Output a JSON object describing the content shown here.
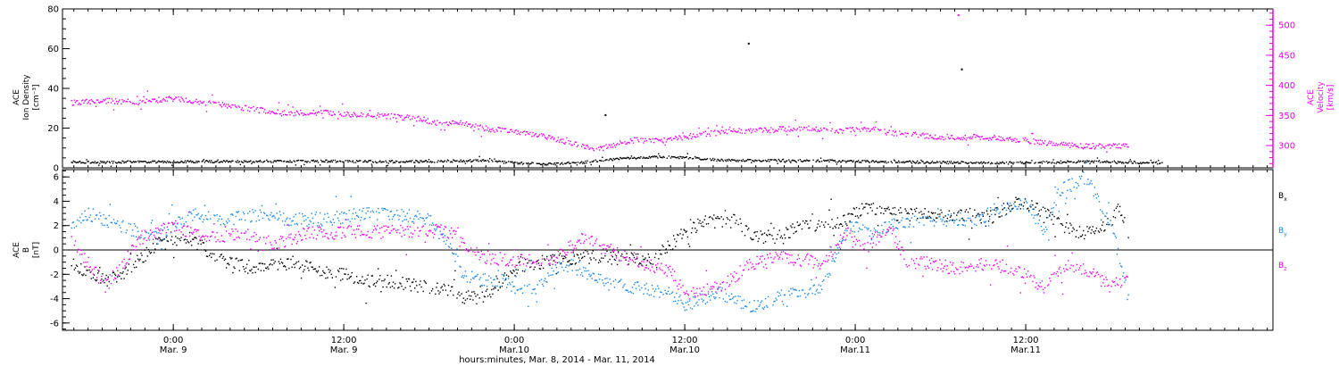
{
  "chart_data": [
    {
      "type": "scatter",
      "title": "",
      "ylabel": "ACE Ion Density [cm⁻³]",
      "ylabel_lines": [
        "ACE",
        "Ion Density",
        "[cm⁻³]"
      ],
      "ylim": [
        0,
        80
      ],
      "yticks": [
        0,
        20,
        40,
        60,
        80
      ],
      "series": [
        {
          "color": "#000000",
          "points": [
            [
              -0.6,
              3
            ],
            [
              -0.3,
              3.2
            ],
            [
              0,
              3.4
            ],
            [
              0.3,
              3.5
            ],
            [
              0.6,
              3.6
            ],
            [
              0.9,
              3.6
            ],
            [
              1.2,
              3.4
            ],
            [
              1.5,
              3.5
            ],
            [
              1.8,
              4
            ],
            [
              2.0,
              2.8
            ],
            [
              2.2,
              2.2
            ],
            [
              2.4,
              3
            ],
            [
              2.6,
              4.8
            ],
            [
              2.8,
              5.8
            ],
            [
              3.0,
              5.5
            ],
            [
              3.2,
              4.2
            ],
            [
              3.4,
              4
            ],
            [
              3.7,
              4
            ],
            [
              4.0,
              3.5
            ],
            [
              4.3,
              3.2
            ],
            [
              4.6,
              3
            ],
            [
              4.9,
              2.8
            ],
            [
              5.1,
              3
            ],
            [
              5.4,
              3.5
            ],
            [
              5.6,
              3
            ],
            [
              5.8,
              2.8
            ]
          ],
          "outliers": [
            [
              3.37,
              63
            ],
            [
              4.62,
              50
            ],
            [
              2.53,
              27
            ]
          ]
        }
      ],
      "right_axis": {
        "ylabel": "ACE Velocity [km/s]",
        "ylabel_lines": [
          "ACE",
          "Velocity",
          "[km/s]"
        ],
        "ylim": [
          263,
          527
        ],
        "yticks": [
          300,
          350,
          400,
          450,
          500
        ],
        "color": "#ee00ee",
        "series": [
          {
            "color": "#ee00ee",
            "points": [
              [
                -0.6,
                372
              ],
              [
                -0.4,
                375
              ],
              [
                -0.2,
                373
              ],
              [
                0,
                379
              ],
              [
                0.15,
                373
              ],
              [
                0.3,
                368
              ],
              [
                0.5,
                360
              ],
              [
                0.7,
                355
              ],
              [
                0.9,
                356
              ],
              [
                1.1,
                352
              ],
              [
                1.3,
                349
              ],
              [
                1.45,
                345
              ],
              [
                1.55,
                338
              ],
              [
                1.7,
                338
              ],
              [
                1.85,
                328
              ],
              [
                2.0,
                325
              ],
              [
                2.2,
                315
              ],
              [
                2.4,
                300
              ],
              [
                2.5,
                295
              ],
              [
                2.55,
                300
              ],
              [
                2.7,
                310
              ],
              [
                2.9,
                310
              ],
              [
                3.1,
                320
              ],
              [
                3.3,
                325
              ],
              [
                3.5,
                327
              ],
              [
                3.7,
                330
              ],
              [
                3.9,
                326
              ],
              [
                4.1,
                328
              ],
              [
                4.2,
                322
              ],
              [
                4.3,
                320
              ],
              [
                4.5,
                315
              ],
              [
                4.7,
                315
              ],
              [
                4.9,
                312
              ],
              [
                5.1,
                306
              ],
              [
                5.3,
                300
              ],
              [
                5.5,
                300
              ],
              [
                5.6,
                301
              ]
            ],
            "outliers": [
              [
                4.6,
                518
              ]
            ]
          }
        ]
      }
    },
    {
      "type": "scatter",
      "title": "",
      "ylabel": "ACE B [nT]",
      "ylabel_lines": [
        "ACE",
        "B",
        "[nT]"
      ],
      "ylim": [
        -6.6,
        6.6
      ],
      "yticks": [
        -6,
        -4,
        -2,
        0,
        2,
        4,
        6
      ],
      "zero_line": true,
      "legend_position": "right",
      "series": [
        {
          "name": "Bx",
          "color": "#000000",
          "points": [
            [
              -0.6,
              -1
            ],
            [
              -0.5,
              -1.8
            ],
            [
              -0.4,
              -2.5
            ],
            [
              -0.3,
              -2
            ],
            [
              -0.1,
              0.5
            ],
            [
              0.1,
              1
            ],
            [
              0.3,
              -1
            ],
            [
              0.5,
              -1.5
            ],
            [
              0.7,
              -1
            ],
            [
              0.9,
              -1.8
            ],
            [
              1.0,
              -2
            ],
            [
              1.1,
              -2.5
            ],
            [
              1.3,
              -2.6
            ],
            [
              1.45,
              -3
            ],
            [
              1.6,
              -3.3
            ],
            [
              1.7,
              -3.8
            ],
            [
              1.8,
              -4
            ],
            [
              2.0,
              -1.5
            ],
            [
              2.2,
              -0.8
            ],
            [
              2.4,
              -0.5
            ],
            [
              2.6,
              -0.6
            ],
            [
              2.8,
              -0.8
            ],
            [
              3.0,
              1.5
            ],
            [
              3.1,
              2.3
            ],
            [
              3.3,
              2.5
            ],
            [
              3.4,
              1
            ],
            [
              3.6,
              1.5
            ],
            [
              3.7,
              2
            ],
            [
              3.8,
              2
            ],
            [
              3.95,
              2.5
            ],
            [
              4.05,
              3.5
            ],
            [
              4.2,
              3
            ],
            [
              4.4,
              3
            ],
            [
              4.6,
              2.8
            ],
            [
              4.8,
              2.8
            ],
            [
              4.95,
              4
            ],
            [
              5.1,
              3.2
            ],
            [
              5.2,
              2
            ],
            [
              5.3,
              1.5
            ],
            [
              5.45,
              2
            ],
            [
              5.55,
              3.5
            ],
            [
              5.6,
              1
            ]
          ]
        },
        {
          "name": "By",
          "color": "#1888e8",
          "points": [
            [
              -0.6,
              2
            ],
            [
              -0.5,
              3
            ],
            [
              -0.3,
              2
            ],
            [
              -0.1,
              1
            ],
            [
              0.1,
              3
            ],
            [
              0.3,
              2.5
            ],
            [
              0.5,
              3
            ],
            [
              0.7,
              2.5
            ],
            [
              0.9,
              2.6
            ],
            [
              1.1,
              3
            ],
            [
              1.3,
              3
            ],
            [
              1.5,
              2.6
            ],
            [
              1.65,
              -0.5
            ],
            [
              1.7,
              -2
            ],
            [
              1.85,
              -2.5
            ],
            [
              1.95,
              -2.5
            ],
            [
              2.0,
              -3
            ],
            [
              2.1,
              -3.3
            ],
            [
              2.3,
              -1
            ],
            [
              2.5,
              -2.5
            ],
            [
              2.7,
              -3
            ],
            [
              2.9,
              -3.5
            ],
            [
              3.0,
              -4.5
            ],
            [
              3.2,
              -3.5
            ],
            [
              3.4,
              -4.6
            ],
            [
              3.6,
              -3.5
            ],
            [
              3.8,
              -3.2
            ],
            [
              3.95,
              2
            ],
            [
              4.1,
              1.5
            ],
            [
              4.3,
              2.5
            ],
            [
              4.5,
              2.5
            ],
            [
              4.7,
              2.6
            ],
            [
              4.9,
              3.5
            ],
            [
              5.0,
              4
            ],
            [
              5.1,
              1.5
            ],
            [
              5.2,
              5
            ],
            [
              5.35,
              6
            ],
            [
              5.5,
              2.2
            ],
            [
              5.6,
              -4
            ]
          ]
        },
        {
          "name": "Bz",
          "color": "#ee00ee",
          "points": [
            [
              -0.6,
              1
            ],
            [
              -0.5,
              -1
            ],
            [
              -0.4,
              -3
            ],
            [
              -0.2,
              1
            ],
            [
              0,
              2
            ],
            [
              0.2,
              1
            ],
            [
              0.4,
              1.5
            ],
            [
              0.6,
              0.5
            ],
            [
              0.8,
              1.5
            ],
            [
              1.0,
              1.5
            ],
            [
              1.2,
              1.5
            ],
            [
              1.4,
              1.6
            ],
            [
              1.6,
              1.6
            ],
            [
              1.8,
              -0.5
            ],
            [
              2.0,
              -0.8
            ],
            [
              2.2,
              -0.8
            ],
            [
              2.4,
              1
            ],
            [
              2.5,
              0.5
            ],
            [
              2.7,
              -1
            ],
            [
              2.9,
              -1.5
            ],
            [
              3.0,
              -3.5
            ],
            [
              3.2,
              -3
            ],
            [
              3.4,
              -1
            ],
            [
              3.6,
              -0.5
            ],
            [
              3.8,
              -1
            ],
            [
              3.95,
              1.5
            ],
            [
              4.05,
              0
            ],
            [
              4.2,
              2
            ],
            [
              4.3,
              -1
            ],
            [
              4.4,
              -1
            ],
            [
              4.6,
              -1.5
            ],
            [
              4.8,
              -1
            ],
            [
              5.0,
              -2
            ],
            [
              5.1,
              -3
            ],
            [
              5.25,
              -1
            ],
            [
              5.4,
              -2
            ],
            [
              5.5,
              -3
            ],
            [
              5.6,
              -2
            ]
          ]
        }
      ],
      "legend": [
        {
          "label": "B",
          "sub": "x",
          "color": "#000000"
        },
        {
          "label": "B",
          "sub": "y",
          "color": "#1888e8"
        },
        {
          "label": "B",
          "sub": "z",
          "color": "#ee00ee"
        }
      ]
    }
  ],
  "time_axis": {
    "xlim": [
      -0.65,
      6.45
    ],
    "ticks": [
      {
        "day": 0,
        "top": "0:00",
        "bottom": "Mar. 9"
      },
      {
        "day": 1,
        "top": "12:00",
        "bottom": "Mar. 9"
      },
      {
        "day": 2,
        "top": "0:00",
        "bottom": "Mar.10"
      },
      {
        "day": 3,
        "top": "12:00",
        "bottom": "Mar.10"
      },
      {
        "day": 4,
        "top": "0:00",
        "bottom": "Mar.11"
      },
      {
        "day": 5,
        "top": "12:00",
        "bottom": "Mar.11"
      }
    ],
    "xlabel": "hours:minutes, Mar.  8, 2014 - Mar. 11, 2014"
  }
}
